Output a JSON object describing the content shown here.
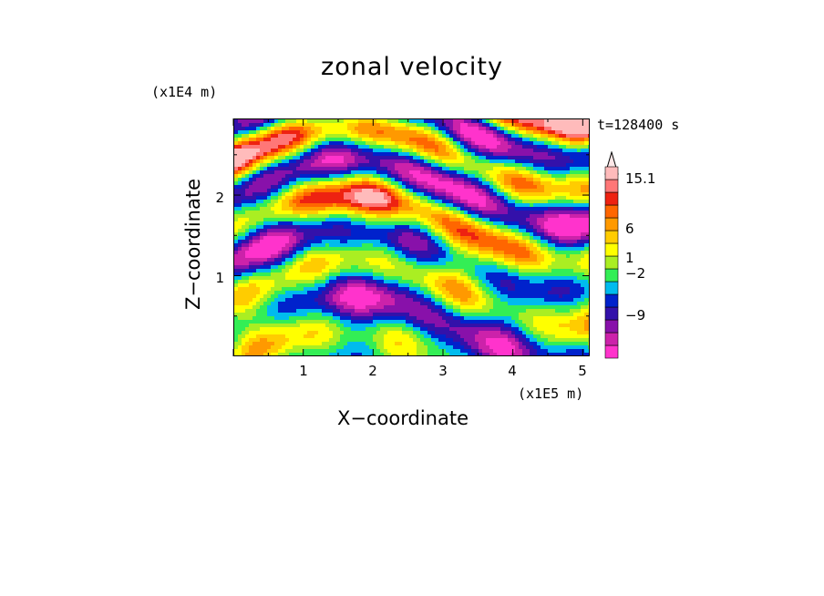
{
  "chart_data": {
    "type": "heatmap",
    "title": "zonal velocity",
    "xlabel": "X-coordinate",
    "ylabel": "Z-coordinate",
    "x_unit_label": "(x1E5 m)",
    "y_unit_label": "(x1E4 m)",
    "time_label": "t=128400 s",
    "x_ticks": [
      "1",
      "2",
      "3",
      "4",
      "5"
    ],
    "y_ticks": [
      "1",
      "2"
    ],
    "xlim": [
      0,
      5.1
    ],
    "ylim": [
      0,
      2.95
    ],
    "colorbar": {
      "labels": [
        "15.1",
        "6",
        "1",
        "-2",
        "-9"
      ],
      "levels_colors": [
        "#ff33cc",
        "#cc22aa",
        "#8811aa",
        "#3311aa",
        "#0022cc",
        "#00bbee",
        "#33ee55",
        "#aaee22",
        "#ffff00",
        "#ffcc00",
        "#ff9900",
        "#ff6600",
        "#ee2211",
        "#ff7777",
        "#ffbbbb"
      ],
      "extend_max": true
    },
    "field_description": "contoured zonal velocity field; blue/purple negative bands aloft, orange/red positive bands, yellow and green elsewhere"
  }
}
